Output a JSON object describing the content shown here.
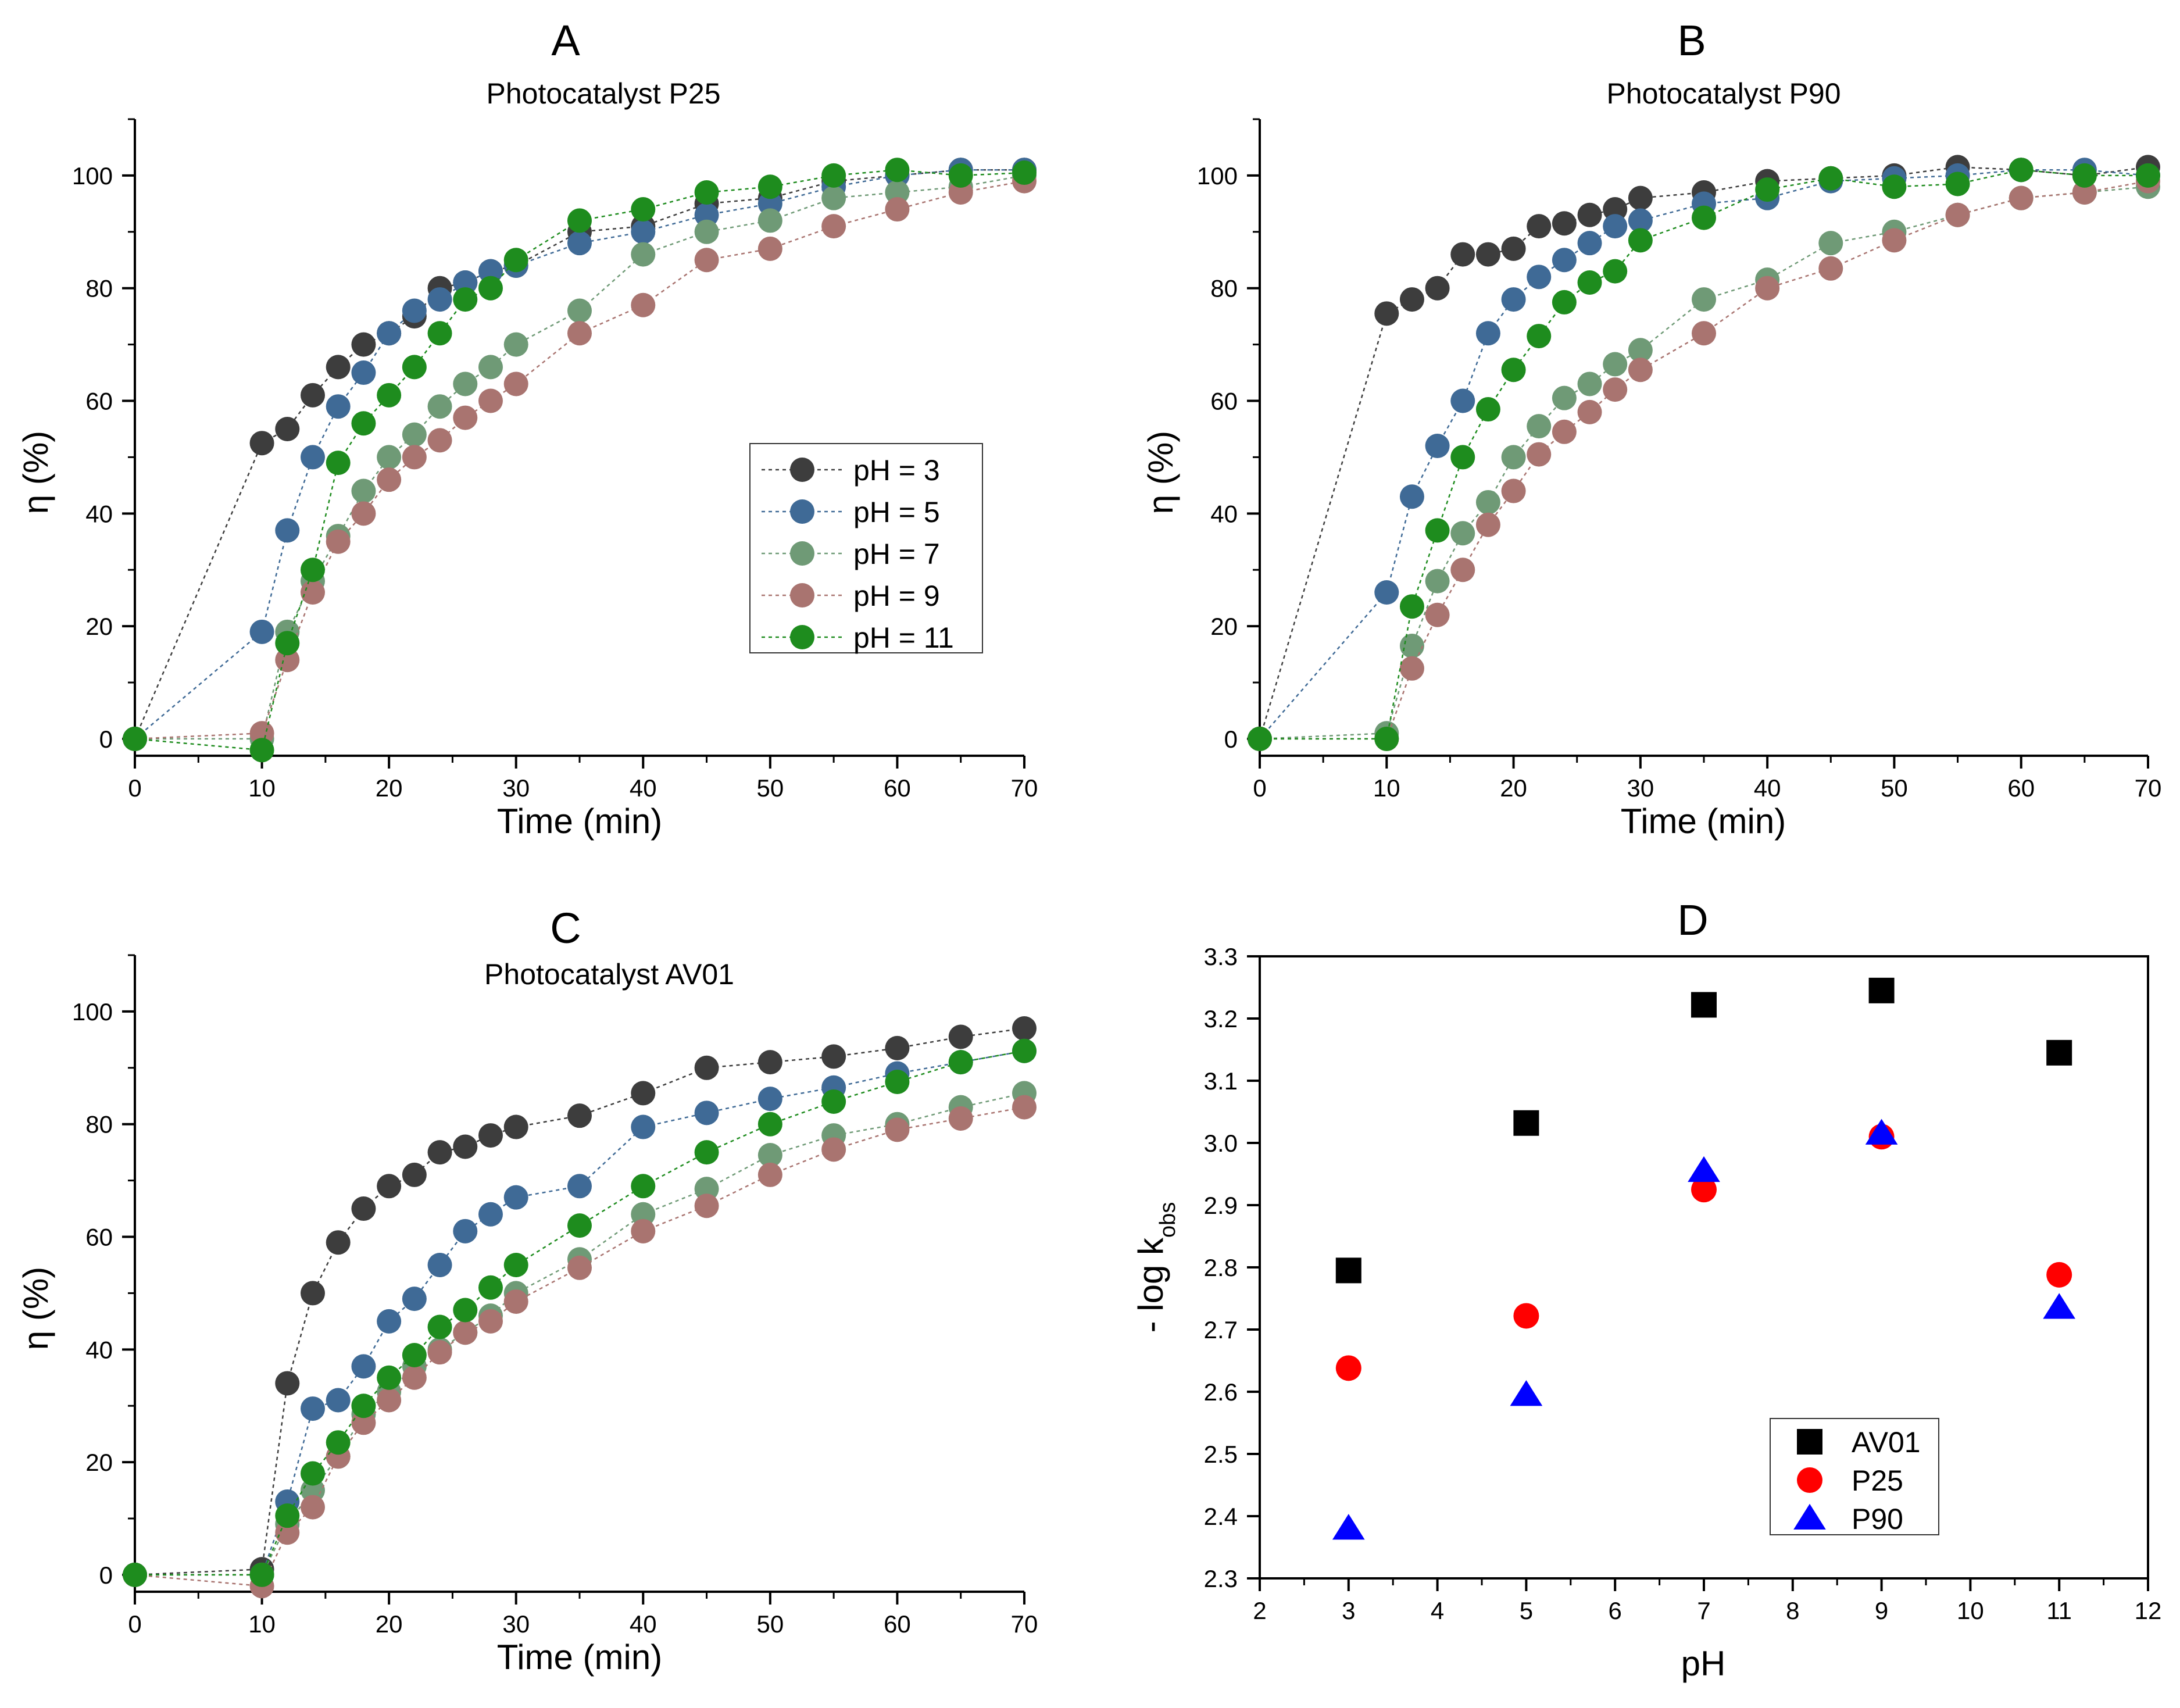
{
  "chart_data": [
    {
      "type": "scatter",
      "panel_label": "A",
      "title": "Photocatalyst P25",
      "xlabel": "Time (min)",
      "ylabel": "η (%)",
      "xlim": [
        0,
        70
      ],
      "ylim": [
        -3,
        110
      ],
      "xticks": [
        0,
        10,
        20,
        30,
        40,
        50,
        60,
        70
      ],
      "yticks": [
        0,
        20,
        40,
        60,
        80,
        100
      ],
      "show_legend": true,
      "legend_position": "middle-right",
      "series": [
        {
          "name": "pH = 3",
          "color": "#3d3d3d",
          "x": [
            0,
            10,
            12,
            14,
            16,
            18,
            20,
            22,
            24,
            26,
            28,
            30,
            35,
            40,
            45,
            50,
            55,
            60,
            65,
            70
          ],
          "values": [
            0,
            52.5,
            55,
            61,
            66,
            70,
            72,
            75,
            80,
            81,
            83,
            84,
            90,
            91,
            95,
            96,
            99,
            100,
            101,
            101
          ]
        },
        {
          "name": "pH = 5",
          "color": "#3f6a96",
          "x": [
            0,
            10,
            12,
            14,
            16,
            18,
            20,
            22,
            24,
            26,
            28,
            30,
            35,
            40,
            45,
            50,
            55,
            60,
            65,
            70
          ],
          "values": [
            0,
            19,
            37,
            50,
            59,
            65,
            72,
            76,
            78,
            81,
            83,
            84,
            88,
            90,
            93,
            95,
            98,
            100,
            101,
            101
          ]
        },
        {
          "name": "pH = 7",
          "color": "#6f9a76",
          "x": [
            0,
            10,
            12,
            14,
            16,
            18,
            20,
            22,
            24,
            26,
            28,
            30,
            35,
            40,
            45,
            50,
            55,
            60,
            65,
            70
          ],
          "values": [
            0,
            0,
            19,
            28,
            36,
            44,
            50,
            54,
            59,
            63,
            66,
            70,
            76,
            86,
            90,
            92,
            96,
            97,
            98,
            100
          ]
        },
        {
          "name": "pH = 9",
          "color": "#a97470",
          "x": [
            0,
            10,
            12,
            14,
            16,
            18,
            20,
            22,
            24,
            26,
            28,
            30,
            35,
            40,
            45,
            50,
            55,
            60,
            65,
            70
          ],
          "values": [
            0,
            1,
            14,
            26,
            35,
            40,
            46,
            50,
            53,
            57,
            60,
            63,
            72,
            77,
            85,
            87,
            91,
            94,
            97,
            99
          ]
        },
        {
          "name": "pH = 11",
          "color": "#1e8c1e",
          "x": [
            0,
            10,
            12,
            14,
            16,
            18,
            20,
            22,
            24,
            26,
            28,
            30,
            35,
            40,
            45,
            50,
            55,
            60,
            65,
            70
          ],
          "values": [
            0,
            -2,
            17,
            30,
            49,
            56,
            61,
            66,
            72,
            78,
            80,
            85,
            92,
            94,
            97,
            98,
            100,
            101,
            100,
            100.5
          ]
        }
      ]
    },
    {
      "type": "scatter",
      "panel_label": "B",
      "title": "Photocatalyst P90",
      "xlabel": "Time (min)",
      "ylabel": "η (%)",
      "xlim": [
        0,
        70
      ],
      "ylim": [
        -3,
        110
      ],
      "xticks": [
        0,
        10,
        20,
        30,
        40,
        50,
        60,
        70
      ],
      "yticks": [
        0,
        20,
        40,
        60,
        80,
        100
      ],
      "show_legend": false,
      "series": [
        {
          "name": "pH = 3",
          "color": "#3d3d3d",
          "x": [
            0,
            10,
            12,
            14,
            16,
            18,
            20,
            22,
            24,
            26,
            28,
            30,
            35,
            40,
            45,
            50,
            55,
            60,
            65,
            70
          ],
          "values": [
            0,
            75.5,
            78,
            80,
            86,
            86,
            87,
            91,
            91.5,
            93,
            94,
            96,
            97,
            99,
            99.5,
            100,
            101.5,
            101,
            100,
            101.5
          ]
        },
        {
          "name": "pH = 5",
          "color": "#3f6a96",
          "x": [
            0,
            10,
            12,
            14,
            16,
            18,
            20,
            22,
            24,
            26,
            28,
            30,
            35,
            40,
            45,
            50,
            55,
            60,
            65,
            70
          ],
          "values": [
            0,
            26,
            43,
            52,
            60,
            72,
            78,
            82,
            85,
            88,
            91,
            92,
            95,
            96,
            99,
            99.5,
            100,
            101,
            101,
            100
          ]
        },
        {
          "name": "pH = 7",
          "color": "#6f9a76",
          "x": [
            0,
            10,
            12,
            14,
            16,
            18,
            20,
            22,
            24,
            26,
            28,
            30,
            35,
            40,
            45,
            50,
            55,
            60,
            65,
            70
          ],
          "values": [
            0,
            1,
            16.5,
            28,
            36.5,
            42,
            50,
            55.5,
            60.5,
            63,
            66.5,
            69,
            78,
            81.5,
            88,
            90,
            93,
            96,
            97,
            98
          ]
        },
        {
          "name": "pH = 9",
          "color": "#a97470",
          "x": [
            0,
            10,
            12,
            14,
            16,
            18,
            20,
            22,
            24,
            26,
            28,
            30,
            35,
            40,
            45,
            50,
            55,
            60,
            65,
            70
          ],
          "values": [
            0,
            0,
            12.5,
            22,
            30,
            38,
            44,
            50.5,
            54.5,
            58,
            62,
            65.5,
            72,
            80,
            83.5,
            88.5,
            93,
            96,
            97,
            99
          ]
        },
        {
          "name": "pH = 11",
          "color": "#1e8c1e",
          "x": [
            0,
            10,
            12,
            14,
            16,
            18,
            20,
            22,
            24,
            26,
            28,
            30,
            35,
            40,
            45,
            50,
            55,
            60,
            65,
            70
          ],
          "values": [
            0,
            0,
            23.5,
            37,
            50,
            58.5,
            65.5,
            71.5,
            77.5,
            81,
            83,
            88.5,
            92.5,
            97.5,
            99.5,
            98,
            98.5,
            101,
            100,
            100
          ]
        }
      ]
    },
    {
      "type": "scatter",
      "panel_label": "C",
      "title": "Photocatalyst AV01",
      "xlabel": "Time (min)",
      "ylabel": "η (%)",
      "xlim": [
        0,
        70
      ],
      "ylim": [
        -3,
        110
      ],
      "xticks": [
        0,
        10,
        20,
        30,
        40,
        50,
        60,
        70
      ],
      "yticks": [
        0,
        20,
        40,
        60,
        80,
        100
      ],
      "show_legend": false,
      "series": [
        {
          "name": "pH = 3",
          "color": "#3d3d3d",
          "x": [
            0,
            10,
            12,
            14,
            16,
            18,
            20,
            22,
            24,
            26,
            28,
            30,
            35,
            40,
            45,
            50,
            55,
            60,
            65,
            70
          ],
          "values": [
            0,
            1,
            34,
            50,
            59,
            65,
            69,
            71,
            75,
            76,
            78,
            79.5,
            81.5,
            85.5,
            90,
            91,
            92,
            93.5,
            95.5,
            97
          ]
        },
        {
          "name": "pH = 5",
          "color": "#3f6a96",
          "x": [
            0,
            10,
            12,
            14,
            16,
            18,
            20,
            22,
            24,
            26,
            28,
            30,
            35,
            40,
            45,
            50,
            55,
            60,
            65,
            70
          ],
          "values": [
            0,
            0,
            13,
            29.5,
            31,
            37,
            45,
            49,
            55,
            61,
            64,
            67,
            69,
            79.5,
            82,
            84.5,
            86.5,
            89,
            91,
            93
          ]
        },
        {
          "name": "pH = 7",
          "color": "#6f9a76",
          "x": [
            0,
            10,
            12,
            14,
            16,
            18,
            20,
            22,
            24,
            26,
            28,
            30,
            35,
            40,
            45,
            50,
            55,
            60,
            65,
            70
          ],
          "values": [
            0,
            0,
            9,
            15,
            21,
            28.5,
            32.5,
            37,
            40,
            43,
            46,
            50,
            56,
            64,
            68.5,
            74.5,
            78,
            80,
            83,
            85.5
          ]
        },
        {
          "name": "pH = 9",
          "color": "#a97470",
          "x": [
            0,
            10,
            12,
            14,
            16,
            18,
            20,
            22,
            24,
            26,
            28,
            30,
            35,
            40,
            45,
            50,
            55,
            60,
            65,
            70
          ],
          "values": [
            0,
            -2,
            7.5,
            12,
            21,
            27,
            31,
            35,
            39.5,
            43,
            45,
            48.5,
            54.5,
            61,
            65.5,
            71,
            75.5,
            79,
            81,
            83
          ]
        },
        {
          "name": "pH = 11",
          "color": "#1e8c1e",
          "x": [
            0,
            10,
            12,
            14,
            16,
            18,
            20,
            22,
            24,
            26,
            28,
            30,
            35,
            40,
            45,
            50,
            55,
            60,
            65,
            70
          ],
          "values": [
            0,
            0,
            10.5,
            18,
            23.5,
            30,
            35,
            39,
            44,
            47,
            51,
            55,
            62,
            69,
            75,
            80,
            84,
            87.5,
            91,
            93
          ]
        }
      ]
    },
    {
      "type": "scatter",
      "panel_label": "D",
      "title": "",
      "xlabel": "pH",
      "ylabel": "- log k",
      "ylabel_subscript": "obs",
      "xlim": [
        2,
        12
      ],
      "ylim": [
        2.3,
        3.3
      ],
      "xticks": [
        2,
        3,
        4,
        5,
        6,
        7,
        8,
        9,
        10,
        11,
        12
      ],
      "yticks": [
        2.3,
        2.4,
        2.5,
        2.6,
        2.7,
        2.8,
        2.9,
        3.0,
        3.1,
        3.2,
        3.3
      ],
      "show_legend": true,
      "legend_position": "bottom-center",
      "series": [
        {
          "name": "AV01",
          "color": "#000000",
          "marker": "square",
          "x": [
            3,
            5,
            7,
            9,
            11
          ],
          "values": [
            2.795,
            3.032,
            3.222,
            3.245,
            3.145
          ]
        },
        {
          "name": "P25",
          "color": "#ff0000",
          "marker": "circle",
          "x": [
            3,
            5,
            7,
            9,
            11
          ],
          "values": [
            2.638,
            2.722,
            2.925,
            3.01,
            2.788
          ]
        },
        {
          "name": "P90",
          "color": "#0000ff",
          "marker": "triangle",
          "x": [
            3,
            5,
            7,
            9,
            11
          ],
          "values": [
            2.38,
            2.595,
            2.955,
            3.015,
            2.735
          ]
        }
      ]
    }
  ]
}
